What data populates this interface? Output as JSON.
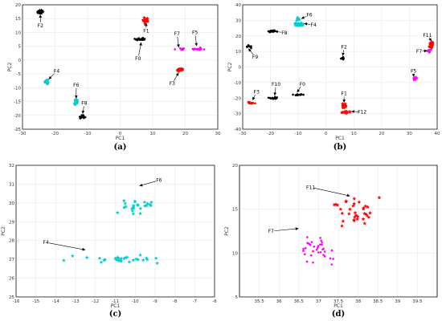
{
  "chart_data": [
    {
      "type": "scatter",
      "caption": "(a)",
      "xlabel": "PC1",
      "ylabel": "PC2",
      "xlim": [
        -30,
        30
      ],
      "ylim": [
        -25,
        20
      ],
      "xticks": [
        -30,
        -20,
        -10,
        0,
        10,
        20,
        30
      ],
      "yticks": [
        -25,
        -20,
        -15,
        -10,
        -5,
        0,
        5,
        10,
        15,
        20
      ],
      "grid": true,
      "clusters": [
        {
          "label": "F0",
          "color": "#000000",
          "marker": "dot",
          "cx": 6.5,
          "cy": 7.5,
          "sx": 1.4,
          "sy": 0.3,
          "n": 22
        },
        {
          "label": "F1",
          "color": "#ff0000",
          "marker": "star",
          "cx": 8.0,
          "cy": 14.5,
          "sx": 0.6,
          "sy": 0.8,
          "n": 18
        },
        {
          "label": "F2",
          "color": "#000000",
          "marker": "star",
          "cx": -24.5,
          "cy": 17.5,
          "sx": 0.6,
          "sy": 0.4,
          "n": 22
        },
        {
          "label": "F3",
          "color": "#ff0000",
          "marker": "star",
          "cx": 18.5,
          "cy": -3.5,
          "sx": 0.9,
          "sy": 0.4,
          "n": 20
        },
        {
          "label": "F4",
          "color": "#00cccc",
          "marker": "star",
          "cx": -22.5,
          "cy": -8.0,
          "sx": 0.4,
          "sy": 0.6,
          "n": 16
        },
        {
          "label": "F5",
          "color": "#ff00ff",
          "marker": "dot",
          "cx": 24.0,
          "cy": 4.0,
          "sx": 1.2,
          "sy": 0.3,
          "n": 16
        },
        {
          "label": "F6",
          "color": "#00cccc",
          "marker": "star",
          "cx": -13.5,
          "cy": -15.0,
          "sx": 0.4,
          "sy": 0.7,
          "n": 16
        },
        {
          "label": "F7",
          "color": "#ff00ff",
          "marker": "dot",
          "cx": 18.5,
          "cy": 4.0,
          "sx": 1.2,
          "sy": 0.3,
          "n": 10
        },
        {
          "label": "F8",
          "color": "#000000",
          "marker": "dot",
          "cx": -11.5,
          "cy": -20.5,
          "sx": 0.5,
          "sy": 0.5,
          "n": 18
        }
      ],
      "annotations": [
        {
          "text": "F0",
          "tx": 5.5,
          "ty": 0.5,
          "ax": 6.5,
          "ay": 6.5
        },
        {
          "text": "F1",
          "tx": 8.0,
          "ty": 10.5,
          "ax": 8.0,
          "ay": 13.5
        },
        {
          "text": "F2",
          "tx": -24.5,
          "ty": 12.5,
          "ax": -24.5,
          "ay": 16.5
        },
        {
          "text": "F3",
          "tx": 16.0,
          "ty": -8.5,
          "ax": 18.0,
          "ay": -4.5
        },
        {
          "text": "F4",
          "tx": -19.5,
          "ty": -4.0,
          "ax": -22.0,
          "ay": -7.0
        },
        {
          "text": "F5",
          "tx": 23.0,
          "ty": 10.0,
          "ax": 23.5,
          "ay": 5.0
        },
        {
          "text": "F6",
          "tx": -13.5,
          "ty": -9.0,
          "ax": -13.5,
          "ay": -14.0
        },
        {
          "text": "F7",
          "tx": 17.5,
          "ty": 9.5,
          "ax": 18.0,
          "ay": 4.5
        },
        {
          "text": "F8",
          "tx": -11.0,
          "ty": -15.5,
          "ax": -11.5,
          "ay": -19.5
        }
      ]
    },
    {
      "type": "scatter",
      "caption": "(b)",
      "xlabel": "PC1",
      "ylabel": "PC2",
      "xlim": [
        -30,
        40
      ],
      "ylim": [
        -40,
        40
      ],
      "xticks": [
        -30,
        -20,
        -10,
        0,
        10,
        20,
        30,
        40
      ],
      "yticks": [
        -40,
        -30,
        -20,
        -10,
        0,
        10,
        20,
        30,
        40
      ],
      "grid": true,
      "clusters": [
        {
          "label": "F0",
          "color": "#000000",
          "marker": "dot",
          "cx": -10.5,
          "cy": -18.0,
          "sx": 1.2,
          "sy": 0.4,
          "n": 16
        },
        {
          "label": "F1",
          "color": "#ff0000",
          "marker": "star",
          "cx": 6.5,
          "cy": -25.0,
          "sx": 0.4,
          "sy": 1.0,
          "n": 14
        },
        {
          "label": "F2",
          "color": "#000000",
          "marker": "dot",
          "cx": 6.0,
          "cy": 5.5,
          "sx": 0.4,
          "sy": 0.6,
          "n": 12
        },
        {
          "label": "F3",
          "color": "#ff0000",
          "marker": "dot",
          "cx": -27.0,
          "cy": -23.0,
          "sx": 0.8,
          "sy": 0.4,
          "n": 18
        },
        {
          "label": "F4",
          "color": "#00cccc",
          "marker": "star",
          "cx": -10.0,
          "cy": 27.5,
          "sx": 1.5,
          "sy": 0.6,
          "n": 20
        },
        {
          "label": "F5",
          "color": "#ff00ff",
          "marker": "star",
          "cx": 32.0,
          "cy": -7.5,
          "sx": 0.5,
          "sy": 0.5,
          "n": 14
        },
        {
          "label": "F6",
          "color": "#00cccc",
          "marker": "star",
          "cx": -10.0,
          "cy": 31.0,
          "sx": 0.6,
          "sy": 0.6,
          "n": 8
        },
        {
          "label": "F7",
          "color": "#ff00ff",
          "marker": "dot",
          "cx": 37.0,
          "cy": 10.5,
          "sx": 0.5,
          "sy": 0.8,
          "n": 10
        },
        {
          "label": "F8",
          "color": "#000000",
          "marker": "dot",
          "cx": -19.5,
          "cy": 23.0,
          "sx": 0.8,
          "sy": 0.4,
          "n": 18
        },
        {
          "label": "F9",
          "color": "#000000",
          "marker": "dot",
          "cx": -28.0,
          "cy": 13.0,
          "sx": 0.7,
          "sy": 0.7,
          "n": 10
        },
        {
          "label": "F10",
          "color": "#000000",
          "marker": "dot",
          "cx": -18.5,
          "cy": -20.0,
          "sx": 1.2,
          "sy": 0.4,
          "n": 16
        },
        {
          "label": "F11",
          "color": "#ff0000",
          "marker": "star",
          "cx": 38.0,
          "cy": 14.5,
          "sx": 0.5,
          "sy": 1.5,
          "n": 20
        },
        {
          "label": "F12",
          "color": "#ff0000",
          "marker": "star",
          "cx": 7.0,
          "cy": -29.0,
          "sx": 1.0,
          "sy": 0.5,
          "n": 12
        }
      ],
      "annotations": [
        {
          "text": "F0",
          "tx": -8.5,
          "ty": -11.0,
          "ax": -10.5,
          "ay": -16.5
        },
        {
          "text": "F1",
          "tx": 6.5,
          "ty": -17.0,
          "ax": 6.5,
          "ay": -23.0
        },
        {
          "text": "F2",
          "tx": 6.5,
          "ty": 13.0,
          "ax": 6.0,
          "ay": 7.0
        },
        {
          "text": "F3",
          "tx": -25.0,
          "ty": -16.0,
          "ax": -26.5,
          "ay": -21.5
        },
        {
          "text": "F4",
          "tx": -4.5,
          "ty": 27.0,
          "ax": -8.0,
          "ay": 28.0
        },
        {
          "text": "F5",
          "tx": 31.5,
          "ty": -2.5,
          "ax": 31.5,
          "ay": -6.5
        },
        {
          "text": "F6",
          "tx": -6.0,
          "ty": 33.5,
          "ax": -9.0,
          "ay": 31.0
        },
        {
          "text": "F7",
          "tx": 33.5,
          "ty": 10.0,
          "ax": 36.5,
          "ay": 10.5
        },
        {
          "text": "F8",
          "tx": -15.0,
          "ty": 22.0,
          "ax": -18.5,
          "ay": 23.0
        },
        {
          "text": "F9",
          "tx": -25.5,
          "ty": 6.5,
          "ax": -28.0,
          "ay": 12.0
        },
        {
          "text": "F10",
          "tx": -18.0,
          "ty": -11.0,
          "ax": -18.5,
          "ay": -18.5
        },
        {
          "text": "F11",
          "tx": 36.5,
          "ty": 20.5,
          "ax": 38.0,
          "ay": 16.5
        },
        {
          "text": "F12",
          "tx": 13.0,
          "ty": -29.0,
          "ax": 9.0,
          "ay": -28.5
        }
      ]
    },
    {
      "type": "scatter",
      "caption": "(c)",
      "xlabel": "PC1",
      "ylabel": "PC2",
      "xlim": [
        -16,
        -6
      ],
      "ylim": [
        25,
        32
      ],
      "xticks": [
        -16,
        -15,
        -14,
        -13,
        -12,
        -11,
        -10,
        -9,
        -8,
        -7,
        -6
      ],
      "yticks": [
        25,
        26,
        27,
        28,
        29,
        30,
        31,
        32
      ],
      "grid": true,
      "clusters": [
        {
          "label": "F6",
          "color": "#00cccc",
          "marker": "star",
          "cx": -10.0,
          "cy": 29.8,
          "sx": 0.6,
          "sy": 0.3,
          "n": 26
        },
        {
          "label": "F4",
          "color": "#00cccc",
          "marker": "star",
          "cx": -11.0,
          "cy": 27.0,
          "sx": 1.5,
          "sy": 0.15,
          "n": 28
        }
      ],
      "annotations": [
        {
          "text": "F6",
          "tx": -8.8,
          "ty": 31.2,
          "ax": -9.8,
          "ay": 30.9
        },
        {
          "text": "F4",
          "tx": -14.5,
          "ty": 27.9,
          "ax": -12.5,
          "ay": 27.5
        }
      ]
    },
    {
      "type": "scatter",
      "caption": "(d)",
      "xlabel": "PC1",
      "ylabel": "PC2",
      "xlim": [
        35,
        40
      ],
      "ylim": [
        5,
        20
      ],
      "xticks": [
        35.5,
        36,
        36.5,
        37,
        37.5,
        38,
        38.5,
        39,
        39.5
      ],
      "yticks": [
        5,
        10,
        15,
        20
      ],
      "grid": true,
      "clusters": [
        {
          "label": "F11",
          "color": "#ff0000",
          "marker": "star",
          "cx": 38.0,
          "cy": 14.5,
          "sx": 0.35,
          "sy": 1.3,
          "n": 34
        },
        {
          "label": "F7",
          "color": "#ff00ff",
          "marker": "dot",
          "cx": 37.0,
          "cy": 10.5,
          "sx": 0.35,
          "sy": 1.0,
          "n": 34
        }
      ],
      "annotations": [
        {
          "text": "F11",
          "tx": 36.8,
          "ty": 17.5,
          "ax": 37.8,
          "ay": 16.5
        },
        {
          "text": "F7",
          "tx": 35.8,
          "ty": 12.5,
          "ax": 36.5,
          "ay": 12.8
        }
      ]
    }
  ]
}
